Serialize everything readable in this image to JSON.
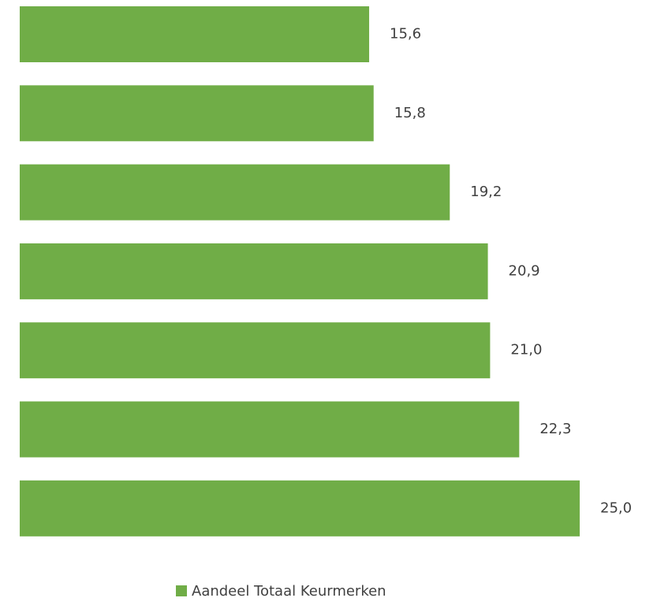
{
  "chart_data": {
    "type": "bar",
    "orientation": "horizontal",
    "categories": [
      null,
      null,
      null,
      null,
      null,
      null,
      null
    ],
    "series": [
      {
        "name": "Aandeel Totaal Keurmerken",
        "color": "#70ad47",
        "values": [
          15.6,
          15.8,
          19.2,
          20.9,
          21.0,
          22.3,
          25.0
        ],
        "value_labels": [
          "15,6",
          "15,8",
          "19,2",
          "20,9",
          "21,0",
          "22,3",
          "25,0"
        ]
      }
    ],
    "legend": "bottom"
  }
}
